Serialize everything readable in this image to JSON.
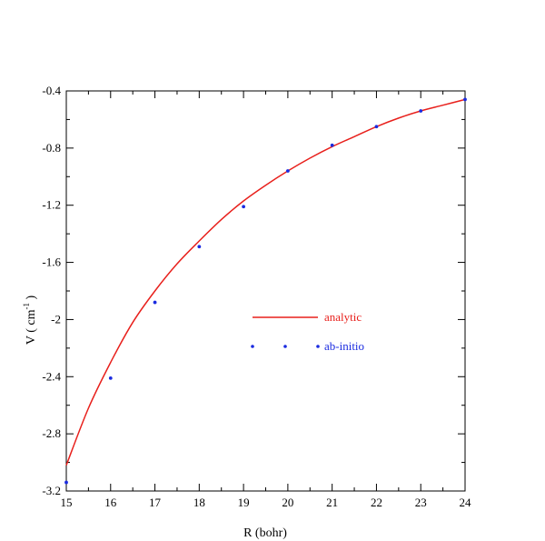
{
  "chart_data": {
    "type": "line",
    "title": "",
    "xlabel": "R (bohr)",
    "ylabel_main": "V ( cm",
    "ylabel_sup": "-1",
    "ylabel_close": " )",
    "xlim": [
      15,
      24
    ],
    "ylim": [
      -3.2,
      -0.4
    ],
    "xticks": [
      15,
      16,
      17,
      18,
      19,
      20,
      21,
      22,
      23,
      24
    ],
    "yticks": [
      -3.2,
      -2.8,
      -2.4,
      -2,
      -1.6,
      -1.2,
      -0.8,
      -0.4
    ],
    "yticks_labels": [
      "-3.2",
      "-2.8",
      "-2.4",
      "-2",
      "-1.6",
      "-1.2",
      "-0.8",
      "-0.4"
    ],
    "grid": false,
    "legend_position": "center-right",
    "series": [
      {
        "name": "analytic",
        "kind": "line",
        "color": "#e8201c",
        "x": [
          15,
          15.5,
          16,
          16.5,
          17,
          17.5,
          18,
          18.5,
          19,
          19.5,
          20,
          20.5,
          21,
          21.5,
          22,
          22.5,
          23,
          23.5,
          24
        ],
        "y": [
          -3.02,
          -2.62,
          -2.3,
          -2.02,
          -1.8,
          -1.61,
          -1.45,
          -1.3,
          -1.17,
          -1.06,
          -0.96,
          -0.87,
          -0.79,
          -0.72,
          -0.65,
          -0.59,
          -0.54,
          -0.5,
          -0.46
        ]
      },
      {
        "name": "ab-initio",
        "kind": "scatter",
        "color": "#1a2be0",
        "x": [
          15,
          16,
          17,
          18,
          19,
          20,
          21,
          22,
          23,
          24
        ],
        "y": [
          -3.14,
          -2.41,
          -1.88,
          -1.49,
          -1.21,
          -0.96,
          -0.78,
          -0.65,
          -0.54,
          -0.46
        ]
      }
    ]
  }
}
